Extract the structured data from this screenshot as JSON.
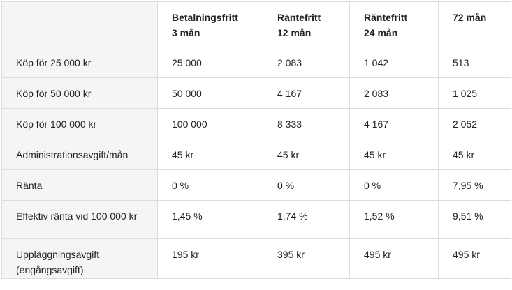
{
  "table": {
    "headers": [
      "",
      "Betalningsfritt\n3 mån",
      "Räntefritt\n12 mån",
      "Räntefritt\n24 mån",
      "72 mån"
    ],
    "header_lines": [
      [],
      [
        "Betalningsfritt",
        "3 mån"
      ],
      [
        "Räntefritt",
        "12 mån"
      ],
      [
        "Räntefritt",
        "24 mån"
      ],
      [
        "72 mån"
      ]
    ],
    "rows": [
      [
        "Köp för 25 000 kr",
        "25 000",
        "2 083",
        "1 042",
        "513"
      ],
      [
        "Köp för 50 000 kr",
        "50 000",
        "4 167",
        "2 083",
        "1 025"
      ],
      [
        "Köp för 100 000 kr",
        "100 000",
        "8 333",
        "4 167",
        "2 052"
      ],
      [
        "Administrationsavgift/mån",
        "45 kr",
        "45 kr",
        "45 kr",
        "45 kr"
      ],
      [
        "Ränta",
        "0 %",
        "0 %",
        "0 %",
        "7,95 %"
      ],
      [
        "Effektiv ränta vid 100 000 kr",
        "1,45 %",
        "1,74 %",
        "1,52 %",
        "9,51 %"
      ],
      [
        "Uppläggningsavgift (engångsavgift)",
        "195 kr",
        "395 kr",
        "495 kr",
        "495 kr"
      ]
    ]
  }
}
